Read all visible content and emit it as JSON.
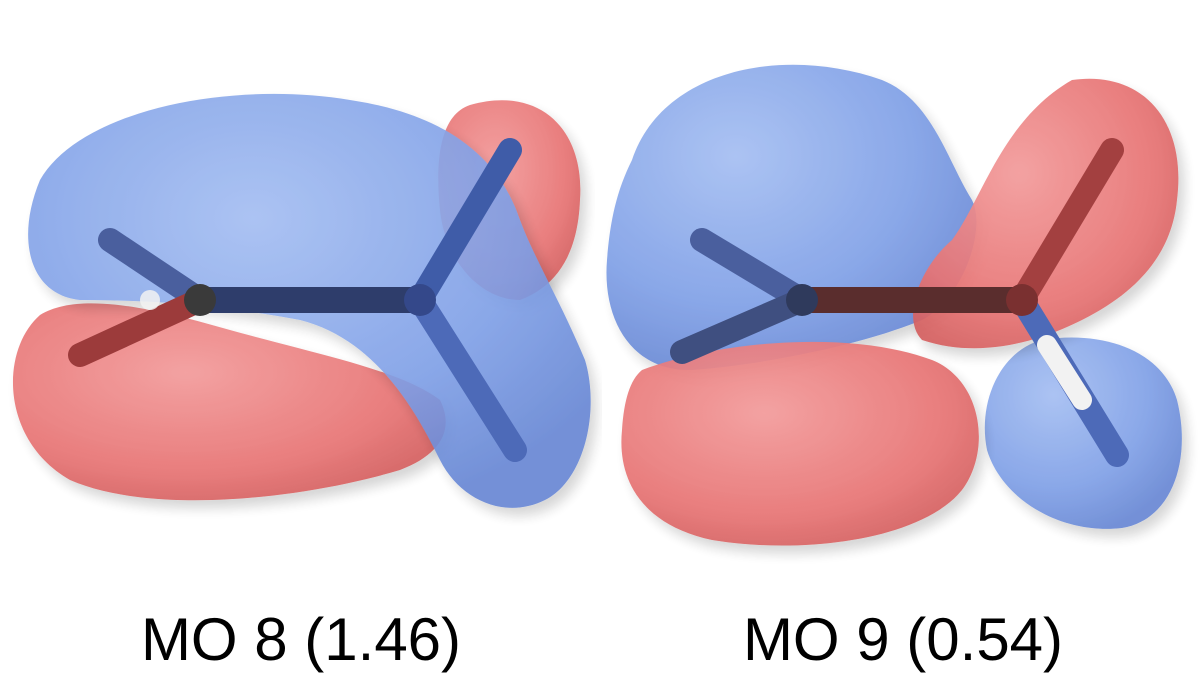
{
  "colors": {
    "positive_lobe": "#6f94e3",
    "negative_lobe": "#e86a6a",
    "bond": "#2b2b2b",
    "hydrogen": "#f2f2f2",
    "background": "#ffffff"
  },
  "orbitals": [
    {
      "caption": "MO 8 (1.46)"
    },
    {
      "caption": "MO 9 (0.54)"
    }
  ]
}
